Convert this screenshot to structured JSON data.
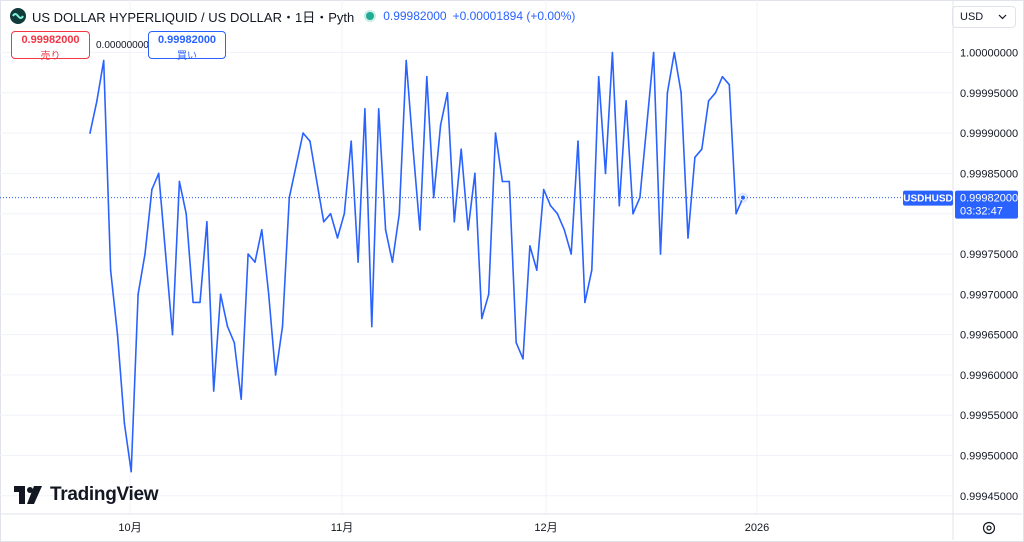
{
  "header": {
    "title": "US DOLLAR HYPERLIQUID / US DOLLAR・1日・Pyth",
    "last_price": "0.99982000",
    "change": "+0.00001894 (+0.00%)",
    "status_color": "#22ab94"
  },
  "trade": {
    "sell_price": "0.99982000",
    "sell_label": "売り",
    "spread": "0.00000000",
    "buy_price": "0.99982000",
    "buy_label": "買い"
  },
  "currency_selector": {
    "value": "USD",
    "icon": "chevron-down-icon"
  },
  "branding": {
    "logo_text": "TradingView",
    "icon": "tradingview-logo-icon"
  },
  "settings_icon": "gear-icon",
  "price_tag": {
    "symbol": "USDHUSD",
    "price": "0.99982000",
    "countdown": "03:32:47"
  },
  "colors": {
    "line": "#2962ff",
    "axis_text": "#131722",
    "grid": "#f0f3fa",
    "sell": "#f23645",
    "buy": "#2962ff"
  },
  "chart_data": {
    "type": "line",
    "title": "US DOLLAR HYPERLIQUID / US DOLLAR・1日・Pyth",
    "xlabel": "",
    "ylabel": "",
    "x_tick_labels": [
      "10月",
      "11月",
      "12月",
      "2026"
    ],
    "y_tick_labels": [
      "1.00000000",
      "0.99995000",
      "0.99990000",
      "0.99985000",
      "0.99980000",
      "0.99975000",
      "0.99970000",
      "0.99965000",
      "0.99960000",
      "0.99955000",
      "0.99950000",
      "0.99945000"
    ],
    "ylim": [
      0.99943,
      1.00003
    ],
    "grid": true,
    "last_value": 0.99982,
    "series": [
      {
        "values": [
          0.9999,
          0.99994,
          0.99999,
          0.99973,
          0.99965,
          0.99954,
          0.99948,
          0.9997,
          0.99975,
          0.99983,
          0.99985,
          0.99975,
          0.99965,
          0.99984,
          0.9998,
          0.99969,
          0.99969,
          0.99979,
          0.99958,
          0.9997,
          0.99966,
          0.99964,
          0.99957,
          0.99975,
          0.99974,
          0.99978,
          0.9997,
          0.9996,
          0.99966,
          0.99982,
          0.99986,
          0.9999,
          0.99989,
          0.99984,
          0.99979,
          0.9998,
          0.99977,
          0.9998,
          0.99989,
          0.99974,
          0.99993,
          0.99966,
          0.99993,
          0.99978,
          0.99974,
          0.9998,
          0.99999,
          0.99988,
          0.99978,
          0.99997,
          0.99982,
          0.99991,
          0.99995,
          0.99979,
          0.99988,
          0.99978,
          0.99985,
          0.99967,
          0.9997,
          0.9999,
          0.99984,
          0.99984,
          0.99964,
          0.99962,
          0.99976,
          0.99973,
          0.99983,
          0.99981,
          0.9998,
          0.99978,
          0.99975,
          0.99989,
          0.99969,
          0.99973,
          0.99997,
          0.99985,
          1.0,
          0.99981,
          0.99994,
          0.9998,
          0.99982,
          0.99991,
          1.0,
          0.99975,
          0.99995,
          1.0,
          0.99995,
          0.99977,
          0.99987,
          0.99988,
          0.99994,
          0.99995,
          0.99997,
          0.99996,
          0.9998,
          0.99982
        ]
      }
    ]
  }
}
